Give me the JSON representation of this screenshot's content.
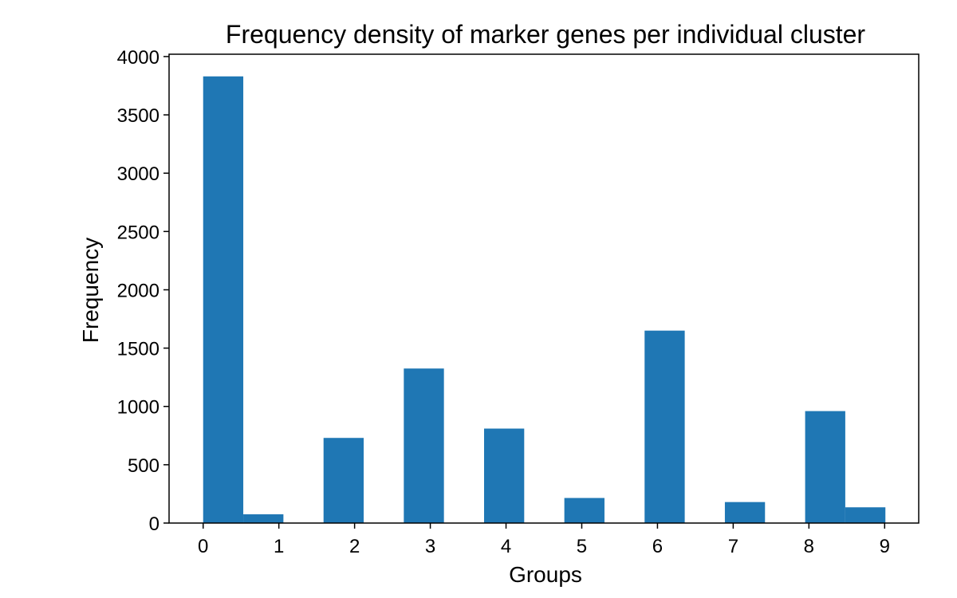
{
  "chart_data": {
    "type": "bar",
    "title": "Frequency density of marker genes per individual cluster",
    "xlabel": "Groups",
    "ylabel": "Frequency",
    "xlim": [
      -0.45,
      9.45
    ],
    "ylim": [
      0,
      4020
    ],
    "x_ticks": [
      "0",
      "1",
      "2",
      "3",
      "4",
      "5",
      "6",
      "7",
      "8",
      "9"
    ],
    "y_ticks": [
      "0",
      "500",
      "1000",
      "1500",
      "2000",
      "2500",
      "3000",
      "3500",
      "4000"
    ],
    "bin_width": 0.53,
    "bins": [
      {
        "x_start": 0.0,
        "value": 3830
      },
      {
        "x_start": 0.53,
        "value": 75
      },
      {
        "x_start": 1.59,
        "value": 730
      },
      {
        "x_start": 2.65,
        "value": 1325
      },
      {
        "x_start": 3.71,
        "value": 810
      },
      {
        "x_start": 4.77,
        "value": 215
      },
      {
        "x_start": 5.83,
        "value": 1650
      },
      {
        "x_start": 6.89,
        "value": 180
      },
      {
        "x_start": 7.95,
        "value": 960
      },
      {
        "x_start": 8.48,
        "value": 135
      }
    ],
    "bar_color": "#1f77b4",
    "grid": false,
    "legend": "none"
  }
}
